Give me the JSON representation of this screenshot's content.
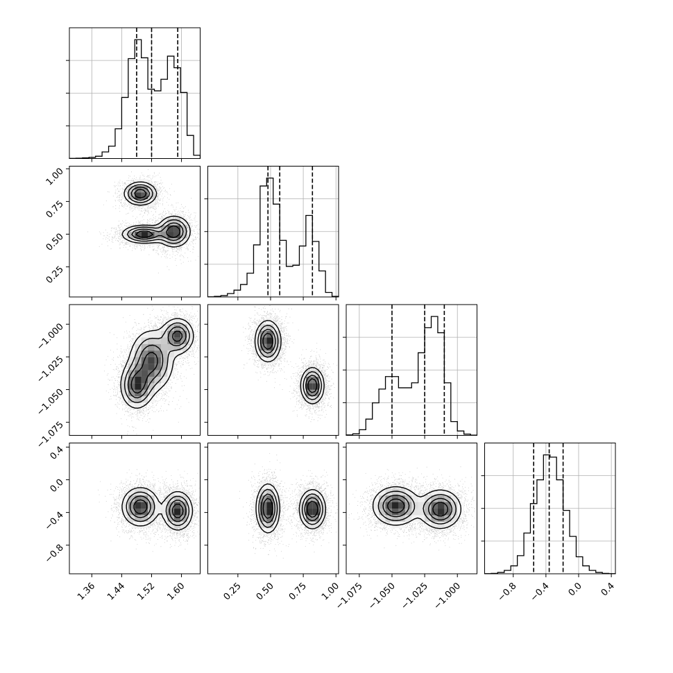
{
  "chart_data": {
    "type": "corner",
    "grid": true,
    "colors": {
      "axes": "#000000",
      "grid": "#b0b0b0",
      "density": "#000000",
      "quantile_line": "#000000"
    },
    "parameters": [
      {
        "range": [
          1.3,
          1.65
        ],
        "ticks": [
          1.36,
          1.44,
          1.52,
          1.6
        ],
        "tick_labels": [
          "1.36",
          "1.44",
          "1.52",
          "1.60"
        ],
        "quantiles": [
          1.48,
          1.52,
          1.59
        ]
      },
      {
        "range": [
          0.02,
          1.02
        ],
        "ticks": [
          0.25,
          0.5,
          0.75,
          1.0
        ],
        "tick_labels": [
          "0.25",
          "0.50",
          "0.75",
          "1.00"
        ],
        "quantiles": [
          0.48,
          0.57,
          0.82
        ]
      },
      {
        "range": [
          -1.085,
          -0.985
        ],
        "ticks": [
          -1.075,
          -1.05,
          -1.025,
          -1.0
        ],
        "tick_labels": [
          "−1.075",
          "−1.050",
          "−1.025",
          "−1.000"
        ],
        "quantiles": [
          -1.05,
          -1.025,
          -1.01
        ]
      },
      {
        "range": [
          -1.15,
          0.45
        ],
        "ticks": [
          -0.8,
          -0.4,
          0.0,
          0.4
        ],
        "tick_labels": [
          "−0.8",
          "−0.4",
          "0.0",
          "0.4"
        ],
        "quantiles": [
          -0.55,
          -0.36,
          -0.19
        ]
      }
    ],
    "histograms": [
      {
        "param": 0,
        "bin_edges": [
          1.3,
          1.3175,
          1.335,
          1.3525,
          1.37,
          1.3875,
          1.405,
          1.4225,
          1.44,
          1.4575,
          1.475,
          1.4925,
          1.51,
          1.5275,
          1.545,
          1.5625,
          1.58,
          1.5975,
          1.615,
          1.6325,
          1.65
        ],
        "counts": [
          1,
          2,
          4,
          7,
          14,
          40,
          75,
          180,
          370,
          605,
          720,
          610,
          420,
          410,
          480,
          620,
          550,
          400,
          140,
          20
        ]
      },
      {
        "param": 1,
        "bin_edges": [
          0.02,
          0.07,
          0.12,
          0.17,
          0.22,
          0.27,
          0.32,
          0.37,
          0.42,
          0.47,
          0.52,
          0.57,
          0.62,
          0.67,
          0.72,
          0.77,
          0.82,
          0.87,
          0.92,
          0.97,
          1.02
        ],
        "counts": [
          1,
          5,
          12,
          30,
          60,
          110,
          210,
          460,
          980,
          1050,
          820,
          500,
          270,
          280,
          450,
          720,
          490,
          230,
          40,
          5
        ]
      },
      {
        "param": 2,
        "bin_edges": [
          -1.085,
          -1.08,
          -1.075,
          -1.07,
          -1.065,
          -1.06,
          -1.055,
          -1.05,
          -1.045,
          -1.04,
          -1.035,
          -1.03,
          -1.025,
          -1.02,
          -1.015,
          -1.01,
          -1.005,
          -1.0,
          -0.995,
          -0.99,
          -0.985
        ],
        "counts": [
          3,
          12,
          45,
          130,
          260,
          370,
          470,
          470,
          380,
          380,
          420,
          660,
          860,
          950,
          820,
          420,
          110,
          35,
          10,
          2
        ]
      },
      {
        "param": 3,
        "bin_edges": [
          -1.15,
          -1.07,
          -0.99,
          -0.91,
          -0.83,
          -0.75,
          -0.67,
          -0.59,
          -0.51,
          -0.43,
          -0.35,
          -0.27,
          -0.19,
          -0.11,
          -0.03,
          0.05,
          0.13,
          0.21,
          0.29,
          0.37,
          0.45
        ],
        "counts": [
          1,
          4,
          12,
          30,
          70,
          160,
          360,
          620,
          830,
          1050,
          1030,
          830,
          560,
          330,
          150,
          70,
          30,
          12,
          4,
          1
        ]
      }
    ],
    "pair_panels": [
      {
        "x_param": 0,
        "y_param": 1,
        "modes": [
          {
            "x": 1.49,
            "y": 0.81,
            "sx": 0.022,
            "sy": 0.045
          },
          {
            "x": 1.5,
            "y": 0.5,
            "sx": 0.03,
            "sy": 0.035
          },
          {
            "x": 1.58,
            "y": 0.52,
            "sx": 0.022,
            "sy": 0.06
          }
        ]
      },
      {
        "x_param": 0,
        "y_param": 2,
        "modes": [
          {
            "x": 1.59,
            "y": -1.009,
            "sx": 0.022,
            "sy": 0.007
          },
          {
            "x": 1.48,
            "y": -1.047,
            "sx": 0.022,
            "sy": 0.009
          },
          {
            "x": 1.52,
            "y": -1.028,
            "sx": 0.03,
            "sy": 0.012
          }
        ]
      },
      {
        "x_param": 0,
        "y_param": 3,
        "modes": [
          {
            "x": 1.49,
            "y": -0.33,
            "sx": 0.025,
            "sy": 0.12
          },
          {
            "x": 1.59,
            "y": -0.38,
            "sx": 0.02,
            "sy": 0.12
          }
        ]
      },
      {
        "x_param": 1,
        "y_param": 2,
        "modes": [
          {
            "x": 0.48,
            "y": -1.013,
            "sx": 0.05,
            "sy": 0.008
          },
          {
            "x": 0.82,
            "y": -1.047,
            "sx": 0.045,
            "sy": 0.007
          }
        ]
      },
      {
        "x_param": 1,
        "y_param": 3,
        "modes": [
          {
            "x": 0.48,
            "y": -0.35,
            "sx": 0.045,
            "sy": 0.15
          },
          {
            "x": 0.82,
            "y": -0.36,
            "sx": 0.05,
            "sy": 0.12
          }
        ]
      },
      {
        "x_param": 2,
        "y_param": 3,
        "modes": [
          {
            "x": -1.013,
            "y": -0.36,
            "sx": 0.008,
            "sy": 0.12
          },
          {
            "x": -1.047,
            "y": -0.32,
            "sx": 0.009,
            "sy": 0.12
          }
        ]
      }
    ]
  }
}
